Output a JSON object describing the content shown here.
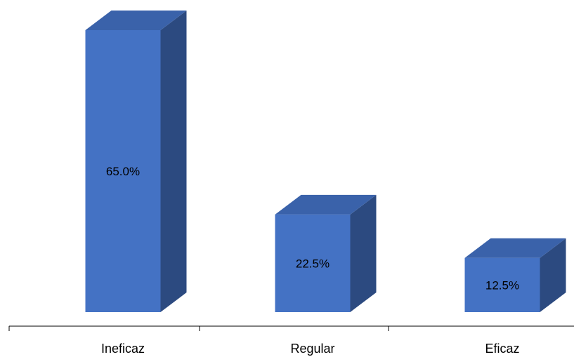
{
  "chart_data": {
    "type": "bar",
    "style": "3d-column",
    "categories": [
      "Ineficaz",
      "Regular",
      "Eficaz"
    ],
    "values": [
      65.0,
      22.5,
      12.5
    ],
    "data_labels": [
      "65.0%",
      "22.5%",
      "12.5%"
    ],
    "unit": "%",
    "title": "",
    "xlabel": "",
    "ylabel": "",
    "ylim": [
      0,
      65
    ],
    "grid": false,
    "legend": "none",
    "colors": {
      "front": "#4472C4",
      "top": "#3A62AA",
      "side": "#2C4A80",
      "axis": "#000000"
    }
  }
}
